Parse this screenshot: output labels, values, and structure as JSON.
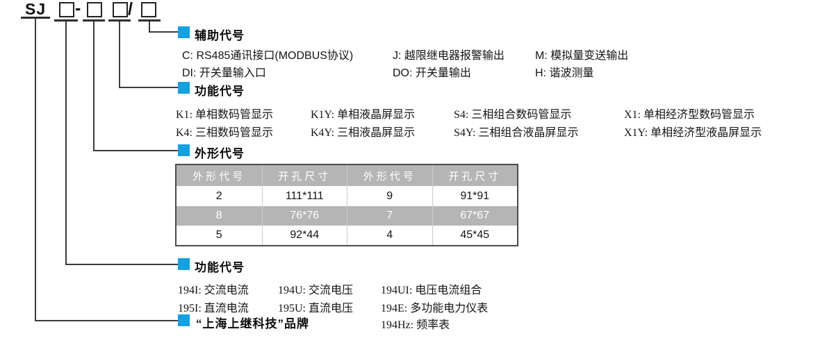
{
  "accent_color": "#14a1e0",
  "table_gray": "#b5b5b5",
  "model": {
    "prefix": "SJ",
    "dash": "-",
    "slash": "/"
  },
  "sections": {
    "auxiliary": {
      "title": "辅助代号",
      "items": [
        "C: RS485通讯接口(MODBUS协议)",
        "J: 越限继电器报警输出",
        "M: 模拟量变送输出",
        "DI: 开关量输入口",
        "DO: 开关量输出",
        "H: 谐波测量"
      ]
    },
    "display": {
      "title": "功能代号",
      "items": [
        "K1: 单相数码管显示",
        "K1Y: 单相液晶屏显示",
        "S4: 三相组合数码管显示",
        "X1: 单相经济型数码管显示",
        "K4: 三相数码管显示",
        "K4Y: 三相液晶屏显示",
        "S4Y: 三相组合液晶屏显示",
        "X1Y: 单相经济型液晶屏显示"
      ]
    },
    "shape": {
      "title": "外形代号",
      "table": {
        "headers": [
          "外形代号",
          "开孔尺寸",
          "外形代号",
          "开孔尺寸"
        ],
        "rows": [
          [
            "2",
            "111*111",
            "9",
            "91*91"
          ],
          [
            "8",
            "76*76",
            "7",
            "67*67"
          ],
          [
            "5",
            "92*44",
            "4",
            "45*45"
          ]
        ]
      }
    },
    "function": {
      "title": "功能代号",
      "items": [
        "194I: 交流电流",
        "194U: 交流电压",
        "194UI: 电压电流组合",
        "195I: 直流电流",
        "195U: 直流电压",
        "194E: 多功能电力仪表",
        "194Hz: 频率表"
      ]
    },
    "brand": {
      "title": "“上海上继科技”品牌"
    }
  }
}
